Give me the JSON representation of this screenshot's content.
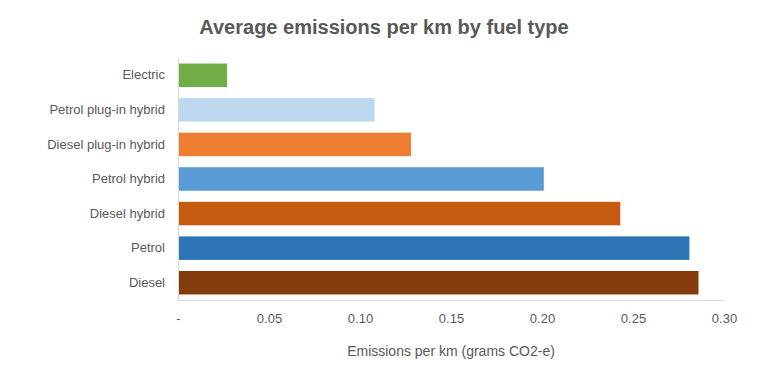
{
  "chart_data": {
    "type": "bar",
    "orientation": "horizontal",
    "title": "Average emissions per km by fuel type",
    "x_label": "Emissions per km (grams CO2-e)",
    "categories": [
      "Electric",
      "Petrol plug-in hybrid",
      "Diesel plug-in hybrid",
      "Petrol hybrid",
      "Diesel hybrid",
      "Petrol",
      "Diesel"
    ],
    "values": [
      0.027,
      0.108,
      0.128,
      0.201,
      0.243,
      0.281,
      0.286
    ],
    "colors": [
      "#70ad47",
      "#bdd7ee",
      "#ed7d31",
      "#5b9bd5",
      "#c55a11",
      "#2e75b6",
      "#843c0c"
    ],
    "xlim": [
      0,
      0.3
    ],
    "xticks": [
      {
        "value": 0,
        "label": "-"
      },
      0.05,
      {
        "value": 0.1,
        "label": "0.10"
      },
      0.15,
      {
        "value": 0.2,
        "label": "0.20"
      },
      0.25,
      {
        "value": 0.3,
        "label": "0.30"
      }
    ],
    "grid": false
  }
}
